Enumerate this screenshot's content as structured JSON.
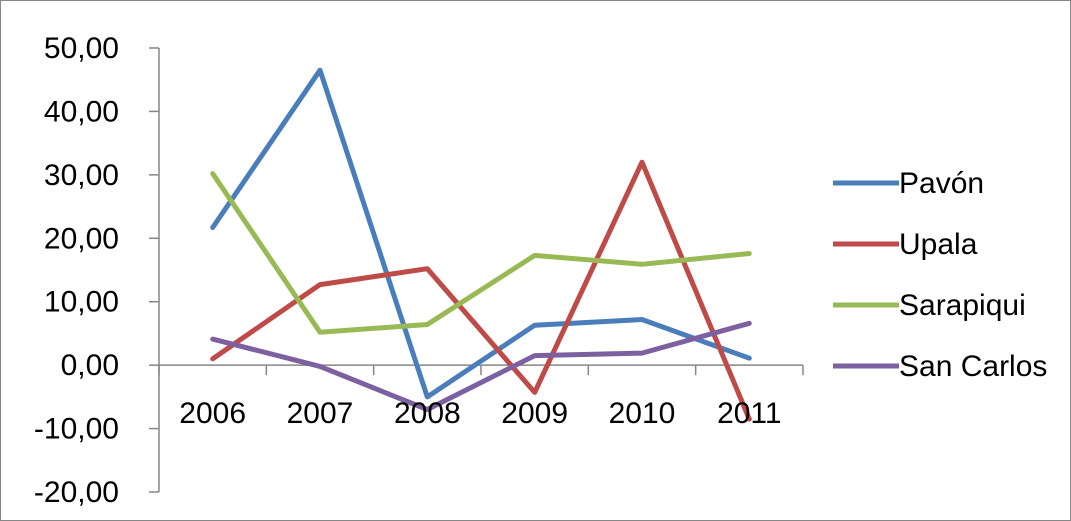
{
  "chart_data": {
    "type": "line",
    "categories": [
      "2006",
      "2007",
      "2008",
      "2009",
      "2010",
      "2011"
    ],
    "ylim": [
      -20,
      50
    ],
    "ytick_step": 10,
    "ytick_labels": [
      "-20,00",
      "-10,00",
      "0,00",
      "10,00",
      "20,00",
      "30,00",
      "40,00",
      "50,00"
    ],
    "grid": false,
    "legend_position": "right",
    "series": [
      {
        "name": "Pavón",
        "color": "#4a7ebb",
        "values": [
          21.7,
          46.5,
          -5.0,
          6.3,
          7.2,
          1.1
        ]
      },
      {
        "name": "Upala",
        "color": "#be4b48",
        "values": [
          1.0,
          12.7,
          15.2,
          -4.3,
          32.0,
          -8.5
        ]
      },
      {
        "name": "Sarapiqui",
        "color": "#98b954",
        "values": [
          30.2,
          5.2,
          6.4,
          17.3,
          15.9,
          17.6
        ]
      },
      {
        "name": "San Carlos",
        "color": "#7d60a0",
        "values": [
          4.1,
          -0.2,
          -7.0,
          1.5,
          1.9,
          6.6
        ]
      }
    ]
  }
}
